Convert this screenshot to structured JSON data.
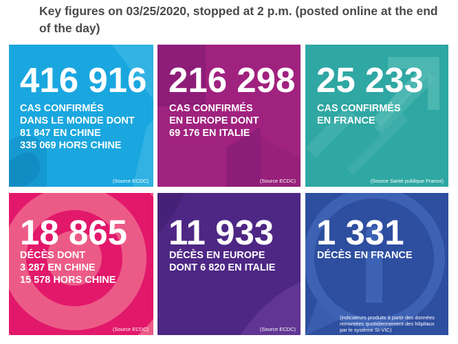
{
  "page": {
    "heading": "Key figures on 03/25/2020, stopped at 2 p.m. (posted online at the end of the day)"
  },
  "colors": {
    "world_cases": "#1aa7df",
    "europe_cases": "#a0227f",
    "france_cases": "#2fa7a3",
    "world_deaths": "#ec5b87",
    "europe_deaths": "#4e2785",
    "france_deaths": "#2e4e9f",
    "heading_text": "#4a4a4a"
  },
  "cards": [
    {
      "number": "416 916",
      "lines": [
        "CAS CONFIRMÉS",
        "DANS LE MONDE DONT",
        "81 847 EN CHINE",
        "335 069 HORS CHINE"
      ],
      "source": "(Source ECDC)"
    },
    {
      "number": "216 298",
      "lines": [
        "CAS CONFIRMÉS",
        "EN EUROPE DONT",
        "69 176 EN ITALIE"
      ],
      "source": "(Source ECDC)"
    },
    {
      "number": "25 233",
      "lines": [
        "CAS CONFIRMÉS",
        "EN FRANCE"
      ],
      "source": "(Source Santé publique France)"
    },
    {
      "number": "18 865",
      "lines": [
        "DÉCÈS DONT",
        "3 287 EN CHINE",
        "15 578 HORS CHINE"
      ],
      "source": "(Source ECDC)"
    },
    {
      "number": "11 933",
      "lines": [
        "DÉCÈS EN EUROPE",
        "DONT 6 820 EN ITALIE"
      ],
      "source": "(Source ECDC)"
    },
    {
      "number": "1 331",
      "lines": [
        "DÉCÈS EN FRANCE"
      ],
      "source": "(indicateurs produits à partir des données remontées quotidiennement des hôpitaux par le système SI-VIC)"
    }
  ]
}
